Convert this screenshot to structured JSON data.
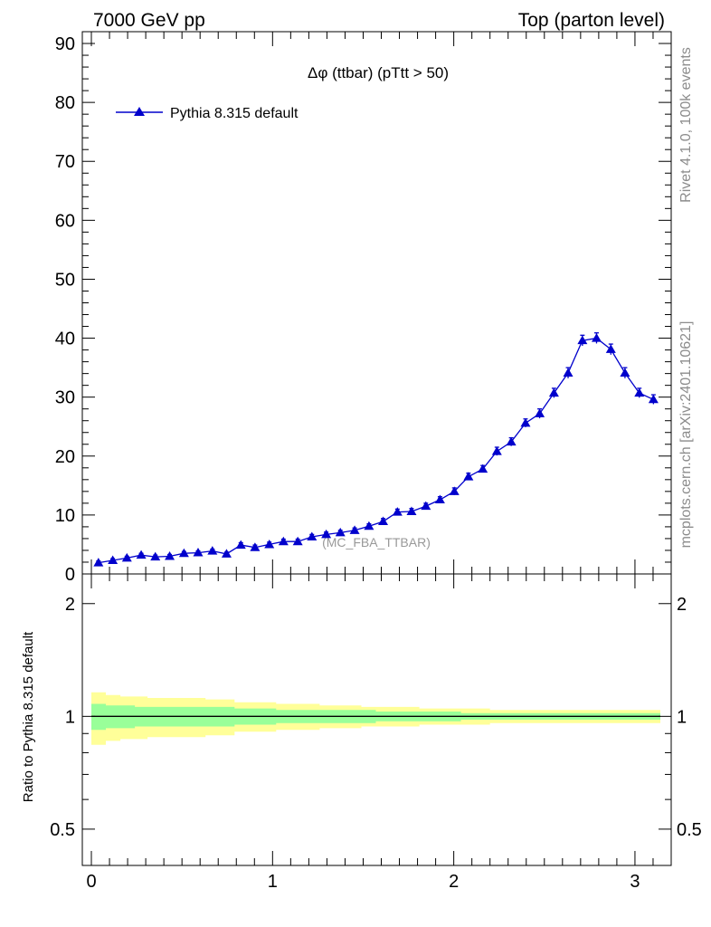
{
  "header": {
    "left": "7000 GeV pp",
    "right": "Top (parton level)"
  },
  "side_labels": {
    "rivet": "Rivet 4.1.0,  100k events",
    "mcplots": "mcplots.cern.ch [arXiv:2401.10621]"
  },
  "watermark": "(MC_FBA_TTBAR)",
  "colors": {
    "series": "#0000cc",
    "band_inner": "#99ff99",
    "band_outer": "#ffff99"
  },
  "chart_data": [
    {
      "type": "line",
      "title": "Δφ (ttbar) (pTtt > 50)",
      "xlabel": "",
      "ylabel": "",
      "xlim": [
        -0.05,
        3.2
      ],
      "ylim": [
        0,
        92
      ],
      "y_ticks": [
        0,
        10,
        20,
        30,
        40,
        50,
        60,
        70,
        80,
        90
      ],
      "y_tick_labels": [
        "0",
        "10",
        "20",
        "30",
        "40",
        "50",
        "60",
        "70",
        "80",
        "90"
      ],
      "legend": {
        "position": "top-left",
        "entries": [
          "Pythia 8.315 default"
        ]
      },
      "series": [
        {
          "name": "Pythia 8.315 default",
          "marker": "triangle",
          "x": [
            0.039,
            0.118,
            0.196,
            0.275,
            0.353,
            0.432,
            0.511,
            0.589,
            0.668,
            0.746,
            0.825,
            0.903,
            0.982,
            1.06,
            1.139,
            1.217,
            1.296,
            1.374,
            1.453,
            1.532,
            1.61,
            1.689,
            1.767,
            1.846,
            1.924,
            2.003,
            2.081,
            2.16,
            2.238,
            2.317,
            2.396,
            2.474,
            2.553,
            2.631,
            2.71,
            2.788,
            2.867,
            2.945,
            3.024,
            3.102
          ],
          "values": [
            1.9,
            2.3,
            2.7,
            3.2,
            2.9,
            3.0,
            3.5,
            3.6,
            3.9,
            3.4,
            4.9,
            4.5,
            5.0,
            5.5,
            5.5,
            6.3,
            6.7,
            7.0,
            7.4,
            8.1,
            8.9,
            10.5,
            10.6,
            11.5,
            12.6,
            14.0,
            16.5,
            17.8,
            20.8,
            22.4,
            25.6,
            27.2,
            30.7,
            34.1,
            39.6,
            40.0,
            38.1,
            34.1,
            30.7,
            29.6
          ],
          "errors": [
            0.3,
            0.3,
            0.3,
            0.3,
            0.3,
            0.3,
            0.3,
            0.3,
            0.3,
            0.3,
            0.4,
            0.4,
            0.4,
            0.4,
            0.4,
            0.4,
            0.4,
            0.4,
            0.4,
            0.4,
            0.5,
            0.5,
            0.5,
            0.5,
            0.5,
            0.6,
            0.6,
            0.6,
            0.7,
            0.7,
            0.7,
            0.8,
            0.8,
            0.9,
            0.9,
            0.9,
            0.9,
            0.9,
            0.8,
            0.8
          ]
        }
      ]
    },
    {
      "type": "area",
      "ylabel": "Ratio to Pythia 8.315 default",
      "xlim": [
        -0.05,
        3.2
      ],
      "ylim": [
        0.4,
        2.4
      ],
      "x_ticks": [
        0,
        1,
        2,
        3
      ],
      "x_tick_labels": [
        "0",
        "1",
        "2",
        "3"
      ],
      "y_ticks": [
        0.5,
        1,
        2
      ],
      "y_tick_labels": [
        "0.5",
        "1",
        "2"
      ],
      "reference_line": 1,
      "band_x": [
        0.0,
        0.08,
        0.16,
        0.24,
        0.31,
        0.39,
        0.47,
        0.55,
        0.63,
        0.71,
        0.79,
        0.86,
        0.94,
        1.02,
        1.1,
        1.18,
        1.26,
        1.33,
        1.41,
        1.49,
        1.57,
        1.65,
        1.73,
        1.81,
        1.88,
        1.96,
        2.04,
        2.12,
        2.2,
        2.28,
        2.36,
        2.43,
        2.51,
        2.59,
        2.67,
        2.75,
        2.83,
        2.91,
        2.98,
        3.06,
        3.14
      ],
      "inner_band": {
        "lower": [
          0.92,
          0.93,
          0.93,
          0.94,
          0.94,
          0.94,
          0.94,
          0.94,
          0.94,
          0.94,
          0.95,
          0.95,
          0.95,
          0.96,
          0.96,
          0.96,
          0.96,
          0.96,
          0.96,
          0.96,
          0.97,
          0.97,
          0.97,
          0.97,
          0.97,
          0.97,
          0.98,
          0.98,
          0.98,
          0.98,
          0.98,
          0.98,
          0.98,
          0.98,
          0.98,
          0.98,
          0.98,
          0.98,
          0.98,
          0.98,
          0.98
        ],
        "upper": [
          1.08,
          1.07,
          1.07,
          1.06,
          1.06,
          1.06,
          1.06,
          1.06,
          1.06,
          1.06,
          1.05,
          1.05,
          1.05,
          1.04,
          1.04,
          1.04,
          1.04,
          1.04,
          1.04,
          1.04,
          1.03,
          1.03,
          1.03,
          1.03,
          1.03,
          1.03,
          1.02,
          1.02,
          1.02,
          1.02,
          1.02,
          1.02,
          1.02,
          1.02,
          1.02,
          1.02,
          1.02,
          1.02,
          1.02,
          1.02,
          1.02
        ]
      },
      "outer_band": {
        "lower": [
          0.84,
          0.86,
          0.87,
          0.87,
          0.88,
          0.88,
          0.88,
          0.88,
          0.89,
          0.89,
          0.91,
          0.91,
          0.91,
          0.92,
          0.92,
          0.92,
          0.93,
          0.93,
          0.93,
          0.94,
          0.94,
          0.94,
          0.94,
          0.95,
          0.95,
          0.95,
          0.95,
          0.95,
          0.96,
          0.96,
          0.96,
          0.96,
          0.96,
          0.96,
          0.96,
          0.96,
          0.96,
          0.96,
          0.96,
          0.96,
          0.96
        ],
        "upper": [
          1.16,
          1.14,
          1.13,
          1.13,
          1.12,
          1.12,
          1.12,
          1.12,
          1.11,
          1.11,
          1.09,
          1.09,
          1.09,
          1.08,
          1.08,
          1.08,
          1.07,
          1.07,
          1.07,
          1.06,
          1.06,
          1.06,
          1.06,
          1.05,
          1.05,
          1.05,
          1.05,
          1.05,
          1.04,
          1.04,
          1.04,
          1.04,
          1.04,
          1.04,
          1.04,
          1.04,
          1.04,
          1.04,
          1.04,
          1.04,
          1.04
        ]
      }
    }
  ]
}
